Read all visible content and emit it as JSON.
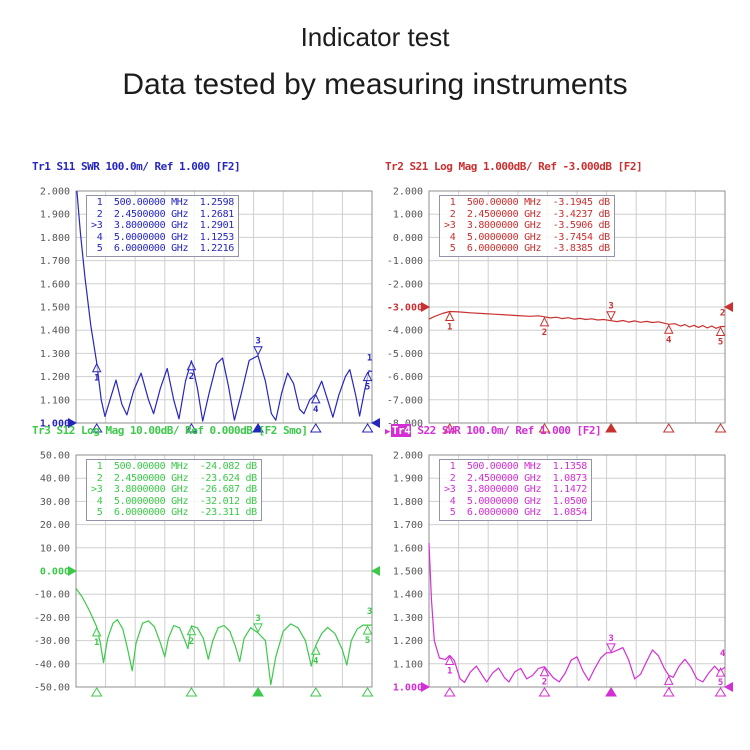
{
  "header": {
    "title1": "Indicator test",
    "title2": "Data tested by measuring instruments"
  },
  "colors": {
    "grid": "#cfcfcf",
    "frame": "#8f8f8f",
    "tick_label": "#555555",
    "marker_box_border": "#9494a8",
    "trace_blue": "#2626bf",
    "trace_red": "#c93030",
    "trace_green": "#3cc94a",
    "trace_magenta": "#d42fd4"
  },
  "chart_data": [
    {
      "type": "line",
      "name": "Tr1",
      "title_rest": "S11 SWR 100.0m/ Ref 1.000 [F2]",
      "color": "#2626bf",
      "active_trace": false,
      "ymin": 1.0,
      "ymax": 2.0,
      "y_ticks": [
        "2.000",
        "1.900",
        "1.800",
        "1.700",
        "1.600",
        "1.500",
        "1.400",
        "1.300",
        "1.200",
        "1.100",
        "1.000"
      ],
      "ref_tick_index": 10,
      "grid_divisions": [
        10,
        10
      ],
      "active_marker": "3",
      "edge_digit": "1",
      "markers": [
        {
          "n": "1",
          "freq": "500.00000 MHz",
          "value_text": "1.2598",
          "x": 0.07,
          "y": 1.2598
        },
        {
          "n": "2",
          "freq": "2.4500000 GHz",
          "value_text": "1.2681",
          "x": 0.39,
          "y": 1.2681
        },
        {
          "n": "3",
          "freq": "3.8000000 GHz",
          "value_text": "1.2901",
          "x": 0.615,
          "y": 1.2901
        },
        {
          "n": "4",
          "freq": "5.0000000 GHz",
          "value_text": "1.1253",
          "x": 0.81,
          "y": 1.1253
        },
        {
          "n": "5",
          "freq": "6.0000000 GHz",
          "value_text": "1.2216",
          "x": 0.985,
          "y": 1.2216
        }
      ],
      "trace": [
        [
          0.003,
          2.0
        ],
        [
          0.015,
          1.82
        ],
        [
          0.03,
          1.63
        ],
        [
          0.05,
          1.42
        ],
        [
          0.07,
          1.26
        ],
        [
          0.085,
          1.1
        ],
        [
          0.098,
          1.028
        ],
        [
          0.115,
          1.1
        ],
        [
          0.135,
          1.185
        ],
        [
          0.155,
          1.08
        ],
        [
          0.172,
          1.035
        ],
        [
          0.195,
          1.14
        ],
        [
          0.22,
          1.215
        ],
        [
          0.245,
          1.1
        ],
        [
          0.262,
          1.04
        ],
        [
          0.285,
          1.15
        ],
        [
          0.308,
          1.235
        ],
        [
          0.33,
          1.1
        ],
        [
          0.348,
          1.018
        ],
        [
          0.37,
          1.18
        ],
        [
          0.39,
          1.268
        ],
        [
          0.41,
          1.15
        ],
        [
          0.428,
          1.008
        ],
        [
          0.45,
          1.13
        ],
        [
          0.475,
          1.255
        ],
        [
          0.495,
          1.28
        ],
        [
          0.515,
          1.16
        ],
        [
          0.535,
          1.012
        ],
        [
          0.557,
          1.12
        ],
        [
          0.585,
          1.27
        ],
        [
          0.615,
          1.29
        ],
        [
          0.64,
          1.18
        ],
        [
          0.66,
          1.04
        ],
        [
          0.675,
          1.012
        ],
        [
          0.695,
          1.13
        ],
        [
          0.715,
          1.215
        ],
        [
          0.735,
          1.17
        ],
        [
          0.755,
          1.06
        ],
        [
          0.77,
          1.04
        ],
        [
          0.79,
          1.1
        ],
        [
          0.81,
          1.125
        ],
        [
          0.83,
          1.18
        ],
        [
          0.85,
          1.1
        ],
        [
          0.868,
          1.025
        ],
        [
          0.888,
          1.12
        ],
        [
          0.91,
          1.2
        ],
        [
          0.925,
          1.23
        ],
        [
          0.945,
          1.12
        ],
        [
          0.958,
          1.03
        ],
        [
          0.975,
          1.14
        ],
        [
          0.99,
          1.225
        ],
        [
          1.0,
          1.222
        ]
      ]
    },
    {
      "type": "line",
      "name": "Tr2",
      "title_rest": "S21 Log Mag 1.000dB/ Ref -3.000dB [F2]",
      "color": "#c93030",
      "active_trace": false,
      "ymin": -8.0,
      "ymax": 2.0,
      "y_ticks": [
        "2.000",
        "1.000",
        "0.000",
        "-1.000",
        "-2.000",
        "-3.000",
        "-4.000",
        "-5.000",
        "-6.000",
        "-7.000",
        "-8.000"
      ],
      "ref_tick_index": 5,
      "grid_divisions": [
        10,
        10
      ],
      "active_marker": "3",
      "edge_digit": "2",
      "markers": [
        {
          "n": "1",
          "freq": "500.00000 MHz",
          "value_text": "-3.1945 dB",
          "x": 0.07,
          "y": -3.1945
        },
        {
          "n": "2",
          "freq": "2.4500000 GHz",
          "value_text": "-3.4237 dB",
          "x": 0.39,
          "y": -3.4237
        },
        {
          "n": "3",
          "freq": "3.8000000 GHz",
          "value_text": "-3.5906 dB",
          "x": 0.615,
          "y": -3.5906
        },
        {
          "n": "4",
          "freq": "5.0000000 GHz",
          "value_text": "-3.7454 dB",
          "x": 0.81,
          "y": -3.7454
        },
        {
          "n": "5",
          "freq": "6.0000000 GHz",
          "value_text": "-3.8385 dB",
          "x": 0.985,
          "y": -3.8385
        }
      ],
      "trace": [
        [
          0,
          -3.52
        ],
        [
          0.02,
          -3.4
        ],
        [
          0.045,
          -3.28
        ],
        [
          0.07,
          -3.195
        ],
        [
          0.1,
          -3.21
        ],
        [
          0.14,
          -3.25
        ],
        [
          0.18,
          -3.28
        ],
        [
          0.22,
          -3.31
        ],
        [
          0.26,
          -3.34
        ],
        [
          0.3,
          -3.37
        ],
        [
          0.34,
          -3.4
        ],
        [
          0.37,
          -3.38
        ],
        [
          0.39,
          -3.424
        ],
        [
          0.41,
          -3.47
        ],
        [
          0.43,
          -3.44
        ],
        [
          0.45,
          -3.5
        ],
        [
          0.47,
          -3.46
        ],
        [
          0.49,
          -3.52
        ],
        [
          0.51,
          -3.49
        ],
        [
          0.53,
          -3.54
        ],
        [
          0.55,
          -3.51
        ],
        [
          0.57,
          -3.56
        ],
        [
          0.59,
          -3.54
        ],
        [
          0.615,
          -3.591
        ],
        [
          0.635,
          -3.63
        ],
        [
          0.655,
          -3.58
        ],
        [
          0.675,
          -3.65
        ],
        [
          0.695,
          -3.6
        ],
        [
          0.715,
          -3.66
        ],
        [
          0.735,
          -3.62
        ],
        [
          0.755,
          -3.67
        ],
        [
          0.775,
          -3.64
        ],
        [
          0.795,
          -3.7
        ],
        [
          0.81,
          -3.745
        ],
        [
          0.83,
          -3.72
        ],
        [
          0.85,
          -3.82
        ],
        [
          0.865,
          -3.76
        ],
        [
          0.88,
          -3.86
        ],
        [
          0.895,
          -3.79
        ],
        [
          0.91,
          -3.88
        ],
        [
          0.925,
          -3.8
        ],
        [
          0.94,
          -3.9
        ],
        [
          0.955,
          -3.82
        ],
        [
          0.97,
          -3.92
        ],
        [
          0.985,
          -3.839
        ],
        [
          1.0,
          -3.84
        ]
      ]
    },
    {
      "type": "line",
      "name": "Tr3",
      "title_rest": "S12 Log Mag 10.00dB/ Ref 0.000dB [F2 Smo]",
      "color": "#3cc94a",
      "active_trace": false,
      "ymin": -50.0,
      "ymax": 50.0,
      "y_ticks": [
        "50.00",
        "40.00",
        "30.00",
        "20.00",
        "10.00",
        "0.000",
        "-10.00",
        "-20.00",
        "-30.00",
        "-40.00",
        "-50.00"
      ],
      "ref_tick_index": 5,
      "grid_divisions": [
        10,
        10
      ],
      "active_marker": "3",
      "edge_digit": "3",
      "markers": [
        {
          "n": "1",
          "freq": "500.00000 MHz",
          "value_text": "-24.082 dB",
          "x": 0.07,
          "y": -24.082
        },
        {
          "n": "2",
          "freq": "2.4500000 GHz",
          "value_text": "-23.624 dB",
          "x": 0.39,
          "y": -23.624
        },
        {
          "n": "3",
          "freq": "3.8000000 GHz",
          "value_text": "-26.687 dB",
          "x": 0.615,
          "y": -26.687
        },
        {
          "n": "4",
          "freq": "5.0000000 GHz",
          "value_text": "-32.012 dB",
          "x": 0.81,
          "y": -32.012
        },
        {
          "n": "5",
          "freq": "6.0000000 GHz",
          "value_text": "-23.311 dB",
          "x": 0.985,
          "y": -23.311
        }
      ],
      "trace": [
        [
          0,
          -7.5
        ],
        [
          0.02,
          -11
        ],
        [
          0.045,
          -17
        ],
        [
          0.07,
          -24.1
        ],
        [
          0.082,
          -31
        ],
        [
          0.093,
          -39.5
        ],
        [
          0.107,
          -29
        ],
        [
          0.125,
          -22.5
        ],
        [
          0.14,
          -21
        ],
        [
          0.158,
          -25
        ],
        [
          0.175,
          -34
        ],
        [
          0.19,
          -43
        ],
        [
          0.203,
          -31
        ],
        [
          0.225,
          -22.5
        ],
        [
          0.245,
          -21.5
        ],
        [
          0.265,
          -24
        ],
        [
          0.285,
          -31
        ],
        [
          0.3,
          -37
        ],
        [
          0.312,
          -29
        ],
        [
          0.33,
          -23.5
        ],
        [
          0.35,
          -24.5
        ],
        [
          0.368,
          -30
        ],
        [
          0.378,
          -33.5
        ],
        [
          0.39,
          -23.624
        ],
        [
          0.41,
          -24.5
        ],
        [
          0.43,
          -29
        ],
        [
          0.447,
          -38
        ],
        [
          0.462,
          -30
        ],
        [
          0.48,
          -24.5
        ],
        [
          0.5,
          -23.5
        ],
        [
          0.52,
          -26
        ],
        [
          0.54,
          -33
        ],
        [
          0.553,
          -39
        ],
        [
          0.568,
          -29
        ],
        [
          0.59,
          -24.5
        ],
        [
          0.615,
          -26.687
        ],
        [
          0.64,
          -30
        ],
        [
          0.658,
          -49
        ],
        [
          0.675,
          -37
        ],
        [
          0.7,
          -26
        ],
        [
          0.725,
          -22.8
        ],
        [
          0.75,
          -24.5
        ],
        [
          0.775,
          -30
        ],
        [
          0.795,
          -41
        ],
        [
          0.81,
          -32.012
        ],
        [
          0.83,
          -27
        ],
        [
          0.85,
          -24.3
        ],
        [
          0.875,
          -27
        ],
        [
          0.9,
          -34
        ],
        [
          0.915,
          -40.5
        ],
        [
          0.93,
          -30
        ],
        [
          0.95,
          -25
        ],
        [
          0.97,
          -23.3
        ],
        [
          1.0,
          -23.3
        ]
      ]
    },
    {
      "type": "line",
      "name": "Tr4",
      "title_rest": "S22 SWR 100.0m/ Ref 1.000 [F2]",
      "color": "#d42fd4",
      "active_trace": true,
      "ymin": 1.0,
      "ymax": 2.0,
      "y_ticks": [
        "2.000",
        "1.900",
        "1.800",
        "1.700",
        "1.600",
        "1.500",
        "1.400",
        "1.300",
        "1.200",
        "1.100",
        "1.000"
      ],
      "ref_tick_index": 10,
      "grid_divisions": [
        10,
        10
      ],
      "active_marker": "3",
      "edge_digit": "4",
      "markers": [
        {
          "n": "1",
          "freq": "500.00000 MHz",
          "value_text": "1.1358",
          "x": 0.07,
          "y": 1.1358
        },
        {
          "n": "2",
          "freq": "2.4500000 GHz",
          "value_text": "1.0873",
          "x": 0.39,
          "y": 1.0873
        },
        {
          "n": "3",
          "freq": "3.8000000 GHz",
          "value_text": "1.1472",
          "x": 0.615,
          "y": 1.1472
        },
        {
          "n": "4",
          "freq": "5.0000000 GHz",
          "value_text": "1.0500",
          "x": 0.81,
          "y": 1.05
        },
        {
          "n": "5",
          "freq": "6.0000000 GHz",
          "value_text": "1.0854",
          "x": 0.985,
          "y": 1.0854
        }
      ],
      "trace": [
        [
          0,
          1.62
        ],
        [
          0.008,
          1.38
        ],
        [
          0.018,
          1.2
        ],
        [
          0.035,
          1.125
        ],
        [
          0.055,
          1.118
        ],
        [
          0.07,
          1.136
        ],
        [
          0.085,
          1.115
        ],
        [
          0.105,
          1.035
        ],
        [
          0.12,
          1.02
        ],
        [
          0.14,
          1.065
        ],
        [
          0.16,
          1.09
        ],
        [
          0.18,
          1.05
        ],
        [
          0.195,
          1.022
        ],
        [
          0.215,
          1.06
        ],
        [
          0.235,
          1.082
        ],
        [
          0.255,
          1.04
        ],
        [
          0.27,
          1.022
        ],
        [
          0.29,
          1.065
        ],
        [
          0.31,
          1.08
        ],
        [
          0.33,
          1.035
        ],
        [
          0.35,
          1.05
        ],
        [
          0.37,
          1.08
        ],
        [
          0.39,
          1.0873
        ],
        [
          0.42,
          1.04
        ],
        [
          0.44,
          1.022
        ],
        [
          0.46,
          1.06
        ],
        [
          0.48,
          1.115
        ],
        [
          0.5,
          1.13
        ],
        [
          0.52,
          1.07
        ],
        [
          0.54,
          1.028
        ],
        [
          0.56,
          1.08
        ],
        [
          0.58,
          1.125
        ],
        [
          0.6,
          1.148
        ],
        [
          0.615,
          1.1472
        ],
        [
          0.635,
          1.158
        ],
        [
          0.655,
          1.17
        ],
        [
          0.675,
          1.115
        ],
        [
          0.695,
          1.035
        ],
        [
          0.715,
          1.055
        ],
        [
          0.735,
          1.11
        ],
        [
          0.755,
          1.16
        ],
        [
          0.775,
          1.135
        ],
        [
          0.795,
          1.08
        ],
        [
          0.81,
          1.05
        ],
        [
          0.825,
          1.042
        ],
        [
          0.845,
          1.09
        ],
        [
          0.865,
          1.12
        ],
        [
          0.885,
          1.085
        ],
        [
          0.905,
          1.035
        ],
        [
          0.925,
          1.022
        ],
        [
          0.945,
          1.06
        ],
        [
          0.965,
          1.09
        ],
        [
          0.98,
          1.068
        ],
        [
          1.0,
          1.085
        ]
      ]
    }
  ]
}
